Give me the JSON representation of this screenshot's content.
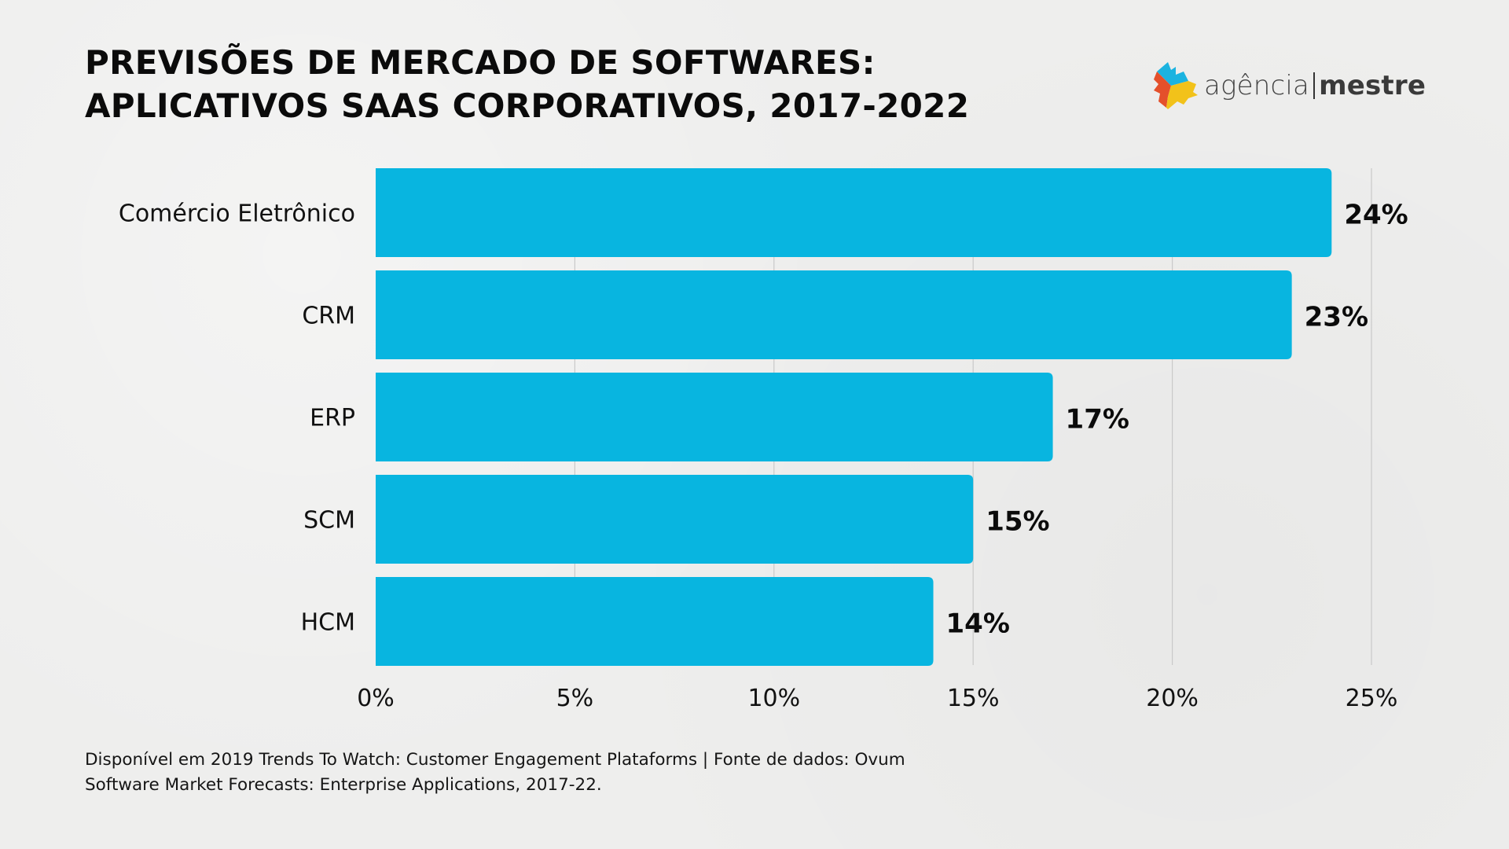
{
  "header": {
    "title_line1": "PREVISÕES DE MERCADO DE SOFTWARES:",
    "title_line2": "APLICATIVOS SAAS CORPORATIVOS, 2017-2022"
  },
  "logo": {
    "icon": "agencia-mestre-logo-icon",
    "word1": "agência",
    "word2": "mestre",
    "colors": {
      "cyan": "#1bb3e0",
      "red": "#e4502b",
      "yellow": "#f2c21a"
    }
  },
  "footnote": {
    "line1": "Disponível em 2019 Trends To Watch: Customer Engagement Plataforms | Fonte de dados: Ovum",
    "line2": "Software Market Forecasts: Enterprise Applications, 2017-22."
  },
  "colors": {
    "bar": "#08b5e0",
    "grid": "#c9c9c9",
    "text": "#111111"
  },
  "chart_data": {
    "type": "bar",
    "orientation": "horizontal",
    "title": "PREVISÕES DE MERCADO DE SOFTWARES: APLICATIVOS SAAS CORPORATIVOS, 2017-2022",
    "categories": [
      "Comércio Eletrônico",
      "CRM",
      "ERP",
      "SCM",
      "HCM"
    ],
    "values": [
      24,
      23,
      17,
      15,
      14
    ],
    "value_labels": [
      "24%",
      "23%",
      "17%",
      "15%",
      "14%"
    ],
    "xlabel": "",
    "ylabel": "",
    "xlim": [
      0,
      25
    ],
    "xticks": [
      0,
      5,
      10,
      15,
      20,
      25
    ],
    "xtick_labels": [
      "0%",
      "5%",
      "10%",
      "15%",
      "20%",
      "25%"
    ],
    "grid": "vertical",
    "legend": "none"
  }
}
